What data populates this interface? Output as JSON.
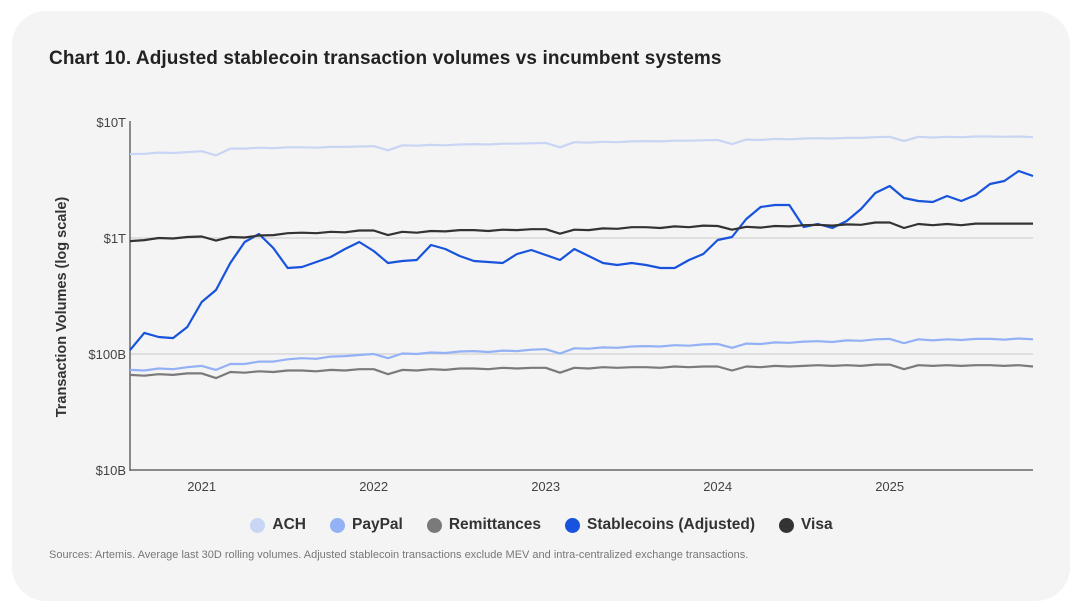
{
  "chart_data": {
    "type": "line",
    "title": "Chart 10. Adjusted stablecoin transaction volumes vs incumbent systems",
    "xlabel": "",
    "ylabel": "Transaction Volumes (log scale)",
    "yscale": "log",
    "ylim_billions": [
      10,
      10000
    ],
    "y_ticks": [
      {
        "value": 10,
        "label": "$10B"
      },
      {
        "value": 100,
        "label": "$100B"
      },
      {
        "value": 1000,
        "label": "$1T"
      },
      {
        "value": 10000,
        "label": "$10T"
      }
    ],
    "x_start": "2020-08",
    "x_end": "2025-11",
    "x_ticks": [
      {
        "value": 2021,
        "label": "2021"
      },
      {
        "value": 2022,
        "label": "2022"
      },
      {
        "value": 2023,
        "label": "2023"
      },
      {
        "value": 2024,
        "label": "2024"
      },
      {
        "value": 2025,
        "label": "2025"
      }
    ],
    "grid": "horizontal at $100B and $1T",
    "legend_position": "bottom",
    "units": "USD billions, monthly points",
    "series": [
      {
        "name": "ACH",
        "color": "#c8d5f3",
        "values": [
          5300,
          5320,
          5450,
          5400,
          5500,
          5600,
          5150,
          5900,
          5900,
          6000,
          5950,
          6050,
          6050,
          6000,
          6100,
          6100,
          6150,
          6200,
          5700,
          6300,
          6250,
          6350,
          6300,
          6400,
          6450,
          6400,
          6500,
          6500,
          6550,
          6600,
          6050,
          6700,
          6650,
          6750,
          6700,
          6800,
          6850,
          6800,
          6900,
          6900,
          6950,
          7000,
          6450,
          7050,
          7000,
          7150,
          7100,
          7200,
          7250,
          7200,
          7300,
          7300,
          7400,
          7450,
          6850,
          7450,
          7350,
          7450,
          7400,
          7500,
          7500,
          7450,
          7500,
          7400
        ]
      },
      {
        "name": "PayPal",
        "color": "#93b1f4",
        "values": [
          73,
          72,
          75,
          74,
          77,
          79,
          73,
          82,
          82,
          86,
          86,
          90,
          92,
          91,
          95,
          96,
          98,
          100,
          92,
          101,
          100,
          103,
          102,
          105,
          106,
          104,
          107,
          106,
          109,
          110,
          101,
          112,
          111,
          114,
          113,
          116,
          117,
          116,
          119,
          118,
          121,
          122,
          113,
          123,
          122,
          126,
          125,
          128,
          129,
          127,
          131,
          130,
          134,
          135,
          124,
          134,
          131,
          134,
          132,
          135,
          135,
          133,
          136,
          134
        ]
      },
      {
        "name": "Remittances",
        "color": "#7a7a7a",
        "values": [
          66,
          65,
          67,
          66,
          68,
          68,
          62,
          70,
          69,
          71,
          70,
          72,
          72,
          71,
          73,
          72,
          74,
          74,
          67,
          73,
          72,
          74,
          73,
          75,
          75,
          74,
          76,
          75,
          76,
          76,
          69,
          76,
          75,
          77,
          76,
          77,
          77,
          76,
          78,
          77,
          78,
          78,
          72,
          78,
          77,
          79,
          78,
          79,
          80,
          79,
          80,
          79,
          81,
          81,
          74,
          80,
          79,
          80,
          79,
          80,
          80,
          79,
          80,
          78
        ]
      },
      {
        "name": "Stablecoins (Adjusted)",
        "color": "#1753dc",
        "values": [
          108,
          152,
          140,
          137,
          171,
          281,
          356,
          609,
          924,
          1083,
          820,
          551,
          562,
          621,
          686,
          804,
          924,
          773,
          609,
          634,
          646,
          871,
          804,
          700,
          634,
          621,
          609,
          728,
          788,
          714,
          646,
          804,
          700,
          609,
          585,
          609,
          585,
          551,
          551,
          646,
          728,
          961,
          1020,
          1458,
          1850,
          1924,
          1924,
          1244,
          1320,
          1219,
          1401,
          1778,
          2443,
          2805,
          2213,
          2084,
          2043,
          2300,
          2084,
          2349,
          2922,
          3099,
          3780,
          3422
        ]
      },
      {
        "name": "Visa",
        "color": "#333333",
        "values": [
          940,
          960,
          1000,
          990,
          1020,
          1030,
          950,
          1020,
          1010,
          1050,
          1060,
          1100,
          1110,
          1100,
          1130,
          1120,
          1160,
          1160,
          1060,
          1130,
          1110,
          1150,
          1140,
          1170,
          1170,
          1150,
          1180,
          1170,
          1190,
          1190,
          1090,
          1180,
          1170,
          1210,
          1200,
          1240,
          1240,
          1220,
          1260,
          1240,
          1280,
          1270,
          1180,
          1250,
          1230,
          1270,
          1260,
          1290,
          1300,
          1280,
          1310,
          1300,
          1360,
          1360,
          1220,
          1320,
          1290,
          1320,
          1290,
          1330,
          1330,
          1330,
          1330,
          1330
        ]
      }
    ]
  },
  "legend": [
    "ACH",
    "PayPal",
    "Remittances",
    "Stablecoins (Adjusted)",
    "Visa"
  ],
  "source": "Sources: Artemis. Average last 30D rolling volumes. Adjusted stablecoin transactions exclude MEV and intra-centralized exchange transactions."
}
